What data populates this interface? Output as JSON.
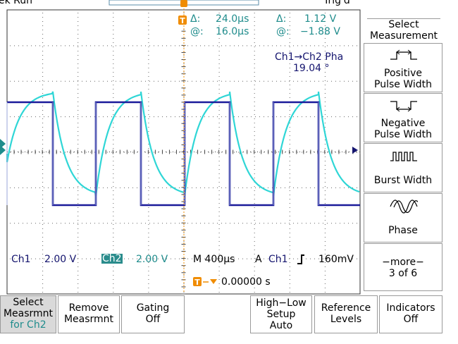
{
  "top": {
    "status": "ek Run",
    "trigger": "Trig'd"
  },
  "cursor": {
    "delta_t_label": "Δ:",
    "delta_t": "24.0µs",
    "at_t_label": "@:",
    "at_t": "16.0µs",
    "delta_v_label": "Δ:",
    "delta_v": "1.12 V",
    "at_v_label": "@:",
    "at_v": "−1.88 V"
  },
  "measurement": {
    "label": "Ch1→Ch2 Pha",
    "value": "19.04 °"
  },
  "status_bar": {
    "ch1_label": "Ch1",
    "ch1_scale": "2.00 V",
    "ch2_label": "Ch2",
    "ch2_scale": "2.00 V",
    "timebase": "M 400µs",
    "trigger_mode": "A",
    "trigger_source": "Ch1",
    "trigger_slope": "∔",
    "trigger_level": "160mV",
    "trigger_position": "0.00000 s"
  },
  "side_menu": {
    "title": "Select Measurement",
    "items": [
      {
        "line1": "Positive",
        "line2": "Pulse Width",
        "icon": "positive-pulse-icon"
      },
      {
        "line1": "Negative",
        "line2": "Pulse Width",
        "icon": "negative-pulse-icon"
      },
      {
        "line1": "",
        "line2": "Burst Width",
        "icon": "burst-icon"
      },
      {
        "line1": "",
        "line2": "Phase",
        "icon": "phase-icon"
      },
      {
        "line1": "−more−",
        "line2": "3 of 6",
        "icon": ""
      }
    ]
  },
  "bottom_menu": [
    {
      "line1": "Select",
      "line2": "Measrmnt",
      "line3": "for Ch2"
    },
    {
      "line1": "Remove",
      "line2": "Measrmnt",
      "line3": ""
    },
    {
      "line1": "Gating",
      "line2": "Off",
      "line3": ""
    },
    {
      "line1": "High−Low",
      "line2": "Setup",
      "line3": "Auto"
    },
    {
      "line1": "Reference",
      "line2": "Levels",
      "line3": ""
    },
    {
      "line1": "Indicators",
      "line2": "Off",
      "line3": ""
    }
  ],
  "colors": {
    "ch1": "#14146e",
    "ch2": "#2fd6d6",
    "accent": "#f08c00",
    "grid": "#555555"
  }
}
